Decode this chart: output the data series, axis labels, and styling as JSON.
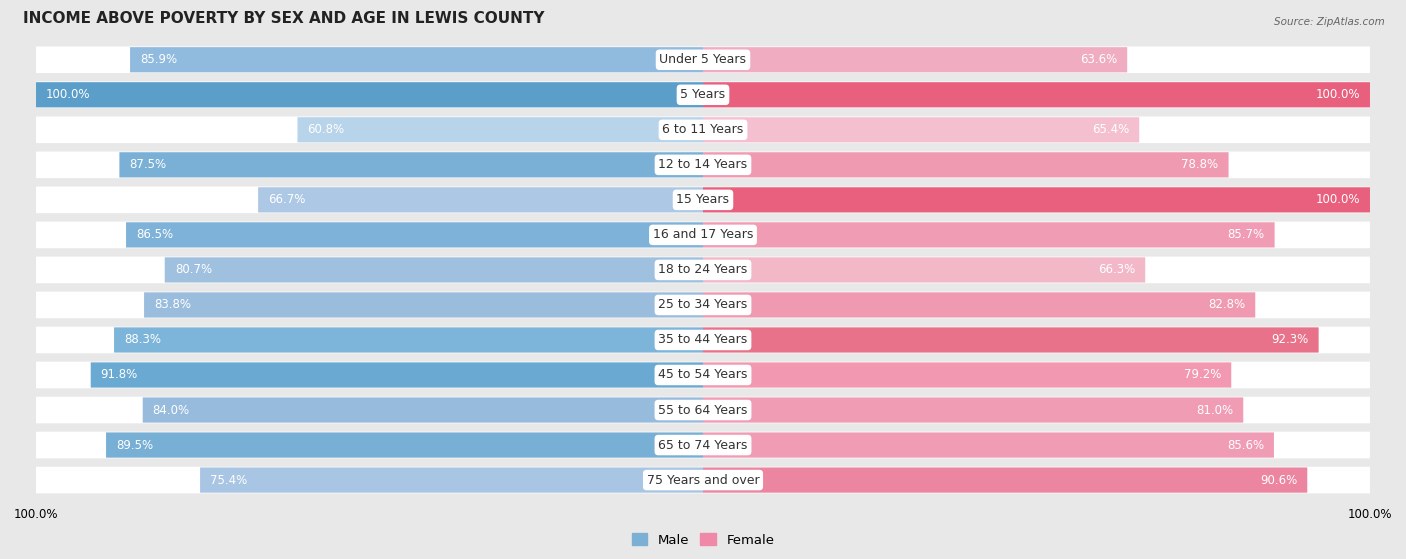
{
  "title": "INCOME ABOVE POVERTY BY SEX AND AGE IN LEWIS COUNTY",
  "source": "Source: ZipAtlas.com",
  "categories": [
    "Under 5 Years",
    "5 Years",
    "6 to 11 Years",
    "12 to 14 Years",
    "15 Years",
    "16 and 17 Years",
    "18 to 24 Years",
    "25 to 34 Years",
    "35 to 44 Years",
    "45 to 54 Years",
    "55 to 64 Years",
    "65 to 74 Years",
    "75 Years and over"
  ],
  "male_values": [
    85.9,
    100.0,
    60.8,
    87.5,
    66.7,
    86.5,
    80.7,
    83.8,
    88.3,
    91.8,
    84.0,
    89.5,
    75.4
  ],
  "female_values": [
    63.6,
    100.0,
    65.4,
    78.8,
    100.0,
    85.7,
    66.3,
    82.8,
    92.3,
    79.2,
    81.0,
    85.6,
    90.6
  ],
  "male_colors": [
    "#90bade",
    "#5b9ec9",
    "#b8d4ea",
    "#7ab0d6",
    "#adc8e5",
    "#7fb2d8",
    "#9fc0df",
    "#9bbddd",
    "#7db4d9",
    "#6aaad2",
    "#97bbdc",
    "#78afd5",
    "#a8c5e3"
  ],
  "female_colors": [
    "#f0adc2",
    "#e8607d",
    "#f4c0d0",
    "#f09ab2",
    "#e8607d",
    "#f09cb4",
    "#f2b8c8",
    "#f09ab2",
    "#e8728a",
    "#f298b0",
    "#f09cb4",
    "#f09cb4",
    "#ec85a0"
  ],
  "bg_color": "#e8e8e8",
  "row_bg_color": "#e8e8e8",
  "title_fontsize": 11,
  "label_fontsize": 9,
  "value_fontsize": 8.5,
  "max_value": 100.0,
  "legend_male": "Male",
  "legend_female": "Female",
  "male_legend_color": "#7bafd4",
  "female_legend_color": "#f088a8"
}
